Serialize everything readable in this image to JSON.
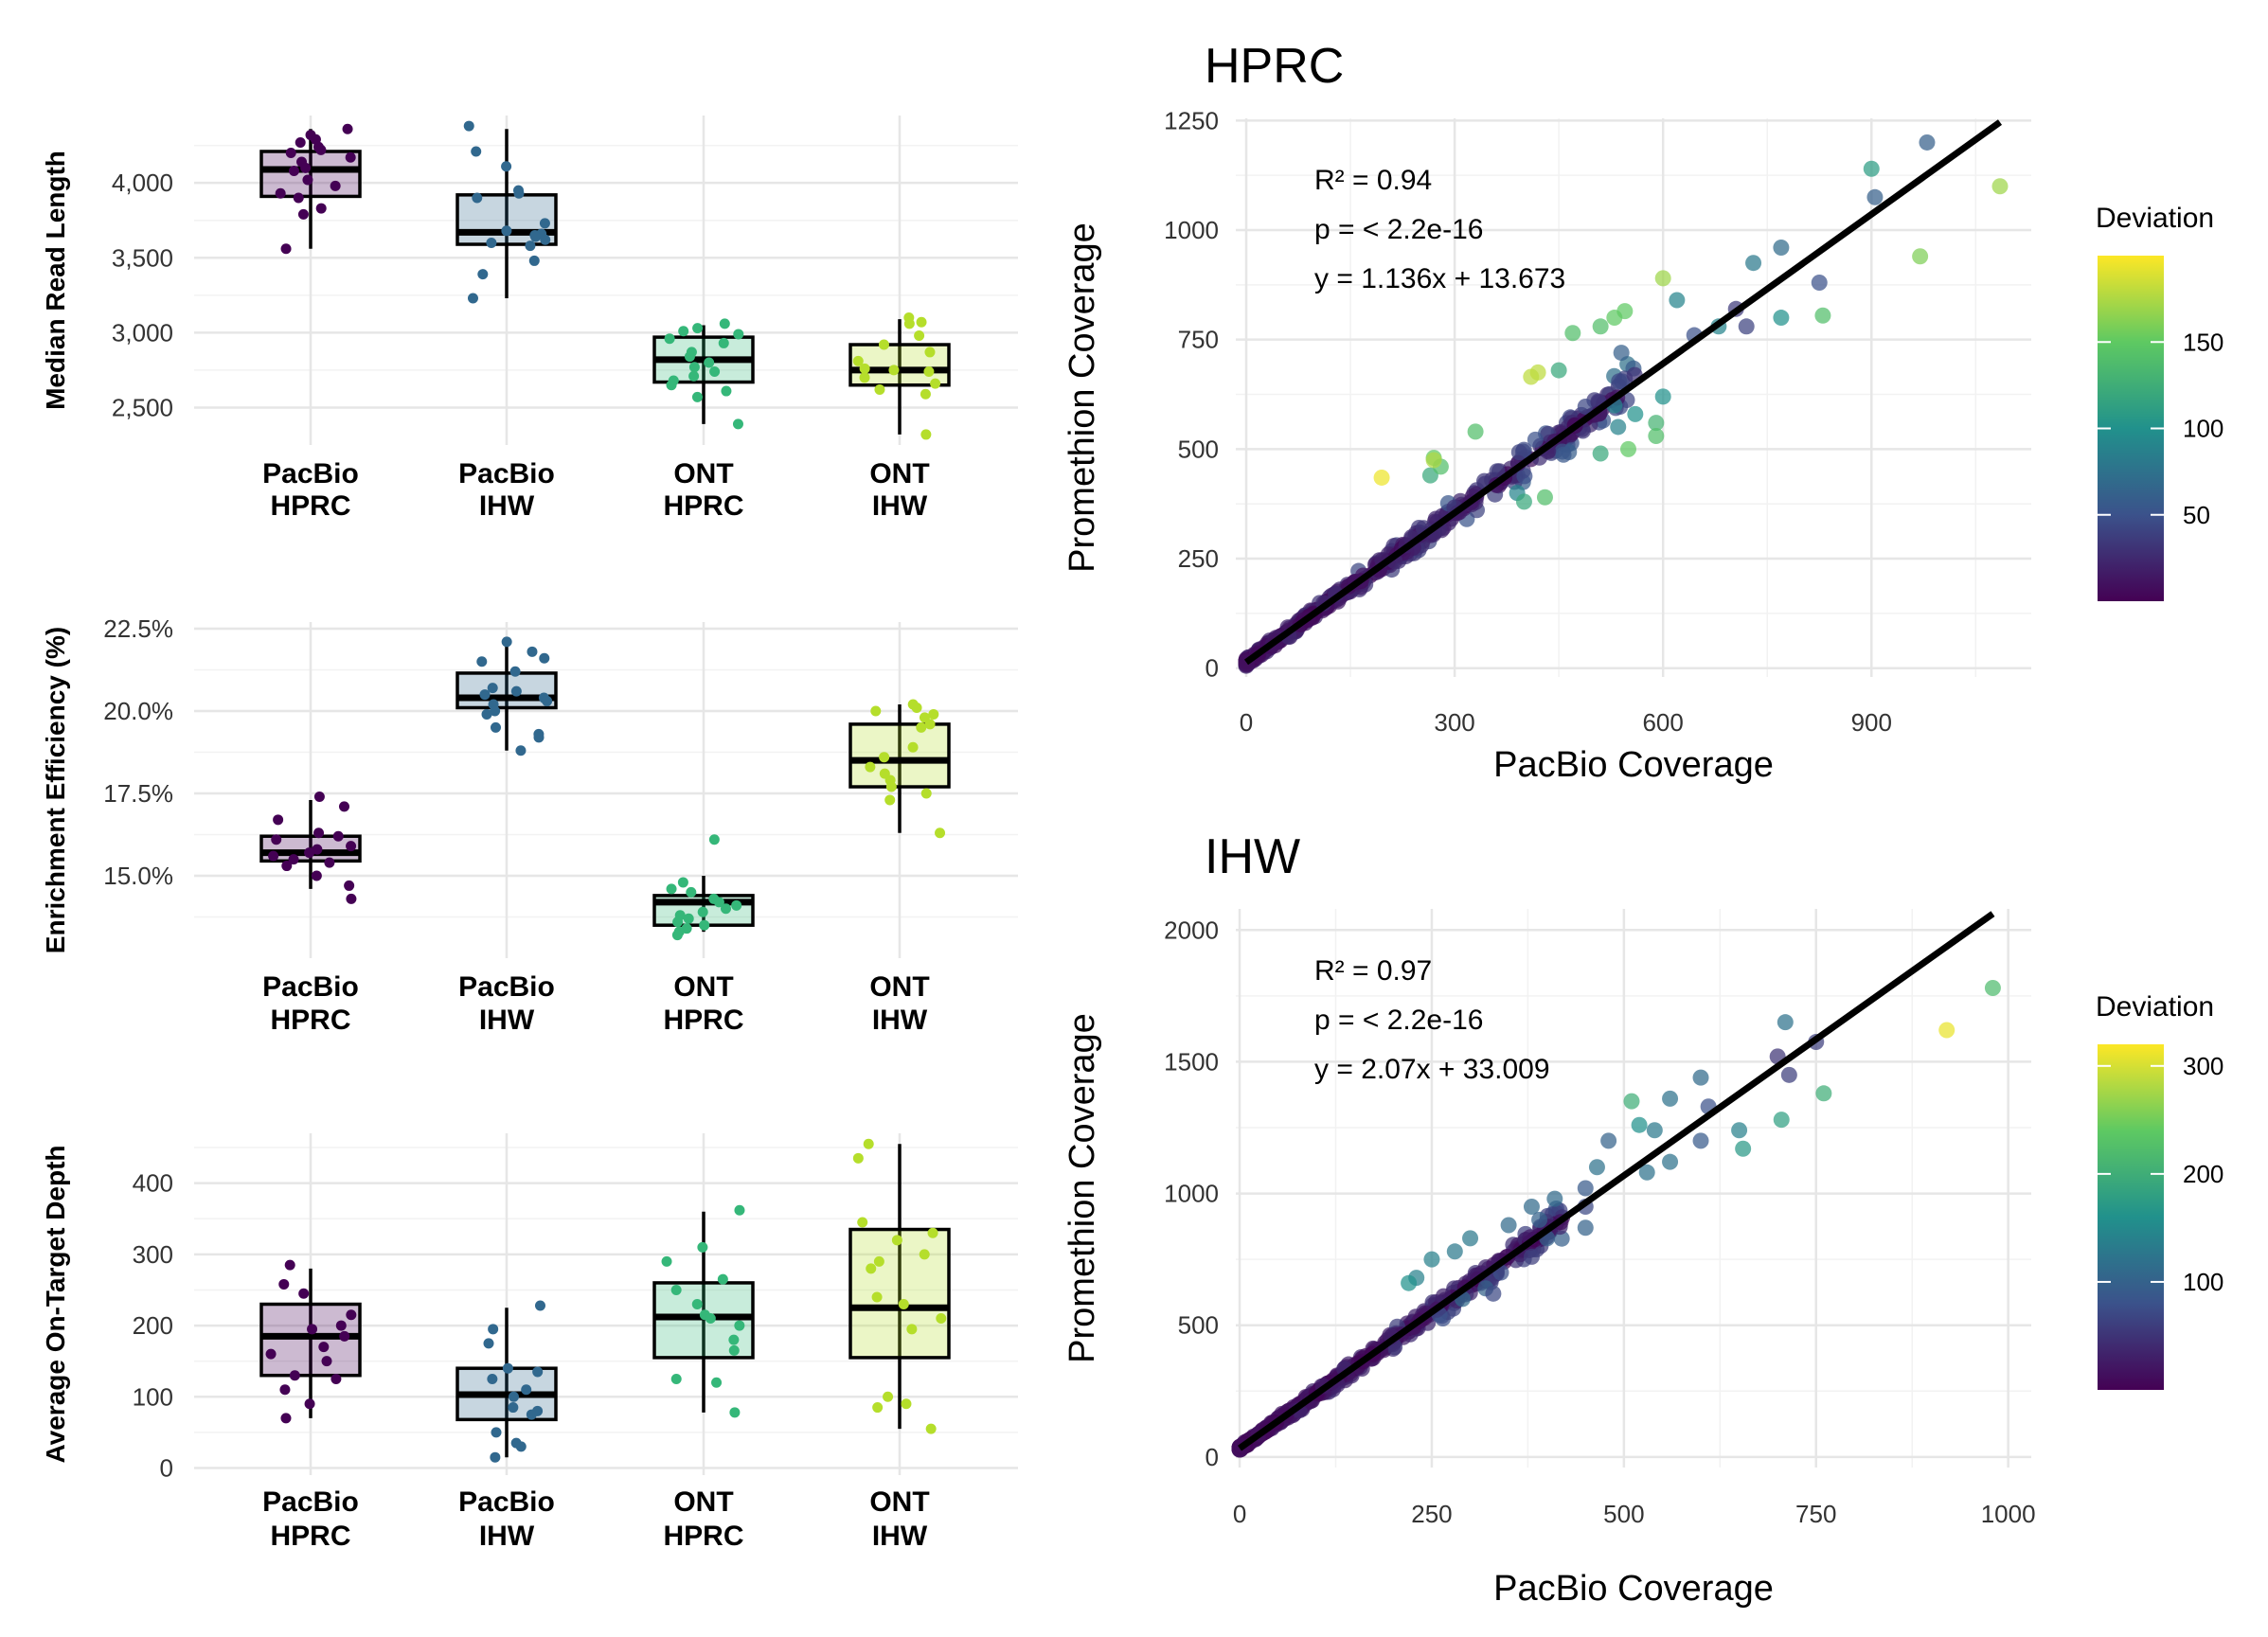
{
  "chart_data": [
    {
      "type": "box",
      "ylabel": "Median Read Length",
      "categories": [
        "PacBio\nHPRC",
        "PacBio\nIHW",
        "ONT\nHPRC",
        "ONT\nIHW"
      ],
      "yticks": [
        "2,500",
        "3,000",
        "3,500",
        "4,000"
      ],
      "ytick_values": [
        2500,
        3000,
        3500,
        4000
      ],
      "ylim": [
        2250,
        4450
      ],
      "colors": [
        "#440154",
        "#31688e",
        "#35b779",
        "#b5de2b"
      ],
      "boxes": [
        {
          "min": 3560,
          "q1": 3910,
          "median": 4090,
          "q3": 4210,
          "max": 4360
        },
        {
          "min": 3230,
          "q1": 3590,
          "median": 3670,
          "q3": 3920,
          "max": 4360
        },
        {
          "min": 2390,
          "q1": 2670,
          "median": 2820,
          "q3": 2970,
          "max": 3050
        },
        {
          "min": 2320,
          "q1": 2650,
          "median": 2750,
          "q3": 2920,
          "max": 3090
        }
      ],
      "points": [
        [
          4360,
          4320,
          4290,
          4270,
          4240,
          4220,
          4200,
          4170,
          4140,
          4100,
          4080,
          4020,
          3980,
          3930,
          3900,
          3830,
          3790,
          3560
        ],
        [
          4380,
          4210,
          4110,
          3950,
          3930,
          3900,
          3730,
          3680,
          3660,
          3650,
          3640,
          3620,
          3600,
          3580,
          3480,
          3390,
          3230
        ],
        [
          3060,
          3030,
          3010,
          2990,
          2960,
          2930,
          2870,
          2840,
          2800,
          2770,
          2740,
          2710,
          2680,
          2650,
          2610,
          2570,
          2390
        ],
        [
          3100,
          3070,
          3060,
          2980,
          2920,
          2870,
          2810,
          2760,
          2750,
          2740,
          2700,
          2660,
          2620,
          2590,
          2320
        ]
      ]
    },
    {
      "type": "box",
      "ylabel": "Enrichment Efficiency (%)",
      "categories": [
        "PacBio\nHPRC",
        "PacBio\nIHW",
        "ONT\nHPRC",
        "ONT\nIHW"
      ],
      "yticks": [
        "15.0%",
        "17.5%",
        "20.0%",
        "22.5%"
      ],
      "ytick_values": [
        15.0,
        17.5,
        20.0,
        22.5
      ],
      "ylim": [
        12.5,
        22.7
      ],
      "colors": [
        "#440154",
        "#31688e",
        "#35b779",
        "#b5de2b"
      ],
      "boxes": [
        {
          "min": 14.6,
          "q1": 15.45,
          "median": 15.7,
          "q3": 16.2,
          "max": 17.3
        },
        {
          "min": 18.8,
          "q1": 20.1,
          "median": 20.4,
          "q3": 21.15,
          "max": 22.0
        },
        {
          "min": 13.3,
          "q1": 13.5,
          "median": 14.2,
          "q3": 14.4,
          "max": 15.0
        },
        {
          "min": 16.3,
          "q1": 17.7,
          "median": 18.5,
          "q3": 19.6,
          "max": 20.2
        }
      ],
      "points": [
        [
          17.4,
          17.1,
          16.7,
          16.3,
          16.2,
          16.1,
          15.9,
          15.8,
          15.7,
          15.6,
          15.5,
          15.4,
          15.3,
          15.0,
          14.7,
          14.3
        ],
        [
          22.1,
          21.8,
          21.6,
          21.5,
          21.2,
          20.7,
          20.6,
          20.5,
          20.4,
          20.3,
          20.2,
          20.0,
          19.9,
          19.5,
          19.3,
          19.2,
          18.8
        ],
        [
          16.1,
          14.8,
          14.6,
          14.5,
          14.3,
          14.2,
          14.1,
          14.0,
          13.9,
          13.8,
          13.7,
          13.6,
          13.5,
          13.4,
          13.3,
          13.2
        ],
        [
          20.2,
          20.1,
          20.0,
          19.9,
          19.8,
          19.6,
          19.5,
          18.9,
          18.6,
          18.3,
          18.1,
          17.9,
          17.7,
          17.5,
          17.3,
          16.3
        ]
      ]
    },
    {
      "type": "box",
      "ylabel": "Average On-Target Depth",
      "categories": [
        "PacBio\nHPRC",
        "PacBio\nIHW",
        "ONT\nHPRC",
        "ONT\nIHW"
      ],
      "yticks": [
        "0",
        "100",
        "200",
        "300",
        "400"
      ],
      "ytick_values": [
        0,
        100,
        200,
        300,
        400
      ],
      "ylim": [
        -10,
        470
      ],
      "colors": [
        "#440154",
        "#31688e",
        "#35b779",
        "#b5de2b"
      ],
      "boxes": [
        {
          "min": 70,
          "q1": 130,
          "median": 185,
          "q3": 230,
          "max": 280
        },
        {
          "min": 15,
          "q1": 68,
          "median": 103,
          "q3": 140,
          "max": 225
        },
        {
          "min": 78,
          "q1": 155,
          "median": 212,
          "q3": 260,
          "max": 360
        },
        {
          "min": 55,
          "q1": 155,
          "median": 225,
          "q3": 335,
          "max": 455
        }
      ],
      "points": [
        [
          285,
          258,
          245,
          215,
          200,
          195,
          185,
          170,
          160,
          150,
          130,
          125,
          110,
          90,
          70
        ],
        [
          228,
          195,
          175,
          140,
          135,
          125,
          110,
          100,
          85,
          80,
          75,
          50,
          35,
          30,
          15
        ],
        [
          362,
          310,
          290,
          265,
          250,
          230,
          215,
          210,
          200,
          180,
          165,
          125,
          120,
          78
        ],
        [
          455,
          435,
          345,
          330,
          320,
          300,
          290,
          280,
          240,
          230,
          210,
          195,
          100,
          90,
          85,
          55
        ]
      ]
    },
    {
      "type": "scatter",
      "title": "HPRC",
      "xlabel": "PacBio Coverage",
      "ylabel": "Promethion Coverage",
      "xticks": [
        0,
        300,
        600,
        900
      ],
      "yticks": [
        0,
        250,
        500,
        750,
        1000,
        1250
      ],
      "xlim": [
        -15,
        1130
      ],
      "ylim": [
        -20,
        1255
      ],
      "annotations": [
        "R² = 0.94",
        "p = < 2.2e-16",
        "y = 1.136x + 13.673"
      ],
      "fit": {
        "slope": 1.136,
        "intercept": 13.673,
        "x_range": [
          0,
          1085
        ]
      },
      "legend": {
        "title": "Deviation",
        "ticks": [
          "50",
          "100",
          "150"
        ],
        "tick_values": [
          50,
          100,
          150
        ],
        "range": [
          0,
          200
        ]
      },
      "n_generated": 520,
      "points": [
        [
          980,
          1200,
          60
        ],
        [
          900,
          1140,
          110
        ],
        [
          1085,
          1100,
          170
        ],
        [
          970,
          940,
          160
        ],
        [
          905,
          1075,
          60
        ],
        [
          825,
          880,
          50
        ],
        [
          770,
          960,
          70
        ],
        [
          730,
          925,
          80
        ],
        [
          830,
          805,
          140
        ],
        [
          770,
          800,
          100
        ],
        [
          705,
          820,
          35
        ],
        [
          720,
          780,
          40
        ],
        [
          680,
          780,
          90
        ],
        [
          645,
          760,
          50
        ],
        [
          620,
          840,
          90
        ],
        [
          600,
          890,
          170
        ],
        [
          545,
          815,
          150
        ],
        [
          530,
          800,
          150
        ],
        [
          510,
          780,
          140
        ],
        [
          470,
          765,
          140
        ],
        [
          540,
          720,
          60
        ],
        [
          600,
          620,
          100
        ],
        [
          590,
          560,
          130
        ],
        [
          590,
          530,
          140
        ],
        [
          560,
          580,
          100
        ],
        [
          530,
          600,
          90
        ],
        [
          450,
          680,
          120
        ],
        [
          410,
          665,
          180
        ],
        [
          420,
          675,
          180
        ],
        [
          330,
          540,
          140
        ],
        [
          270,
          480,
          150
        ],
        [
          265,
          440,
          120
        ],
        [
          280,
          460,
          140
        ],
        [
          195,
          435,
          195
        ],
        [
          270,
          475,
          175
        ],
        [
          390,
          400,
          90
        ],
        [
          400,
          380,
          120
        ],
        [
          430,
          390,
          140
        ],
        [
          510,
          490,
          120
        ],
        [
          550,
          500,
          150
        ]
      ]
    },
    {
      "type": "scatter",
      "title": "IHW",
      "xlabel": "PacBio Coverage",
      "ylabel": "Promethion Coverage",
      "xticks": [
        0,
        250,
        500,
        750,
        1000
      ],
      "yticks": [
        0,
        500,
        1000,
        1500,
        2000
      ],
      "xlim": [
        -5,
        1030
      ],
      "ylim": [
        -40,
        2080
      ],
      "annotations": [
        "R² = 0.97",
        "p = < 2.2e-16",
        "y = 2.07x + 33.009"
      ],
      "fit": {
        "slope": 2.07,
        "intercept": 33.009,
        "x_range": [
          0,
          980
        ]
      },
      "legend": {
        "title": "Deviation",
        "ticks": [
          "100",
          "200",
          "300"
        ],
        "tick_values": [
          100,
          200,
          300
        ],
        "range": [
          0,
          320
        ]
      },
      "n_generated": 520,
      "points": [
        [
          920,
          1620,
          310
        ],
        [
          980,
          1780,
          220
        ],
        [
          710,
          1650,
          120
        ],
        [
          750,
          1575,
          60
        ],
        [
          700,
          1520,
          50
        ],
        [
          715,
          1450,
          60
        ],
        [
          600,
          1440,
          110
        ],
        [
          705,
          1280,
          180
        ],
        [
          760,
          1380,
          200
        ],
        [
          650,
          1240,
          140
        ],
        [
          655,
          1170,
          170
        ],
        [
          560,
          1360,
          120
        ],
        [
          610,
          1330,
          80
        ],
        [
          510,
          1350,
          200
        ],
        [
          520,
          1260,
          160
        ],
        [
          540,
          1240,
          130
        ],
        [
          600,
          1200,
          90
        ],
        [
          530,
          1080,
          120
        ],
        [
          560,
          1120,
          120
        ],
        [
          480,
          1200,
          100
        ],
        [
          465,
          1100,
          120
        ],
        [
          450,
          1020,
          90
        ],
        [
          410,
          980,
          110
        ],
        [
          380,
          950,
          110
        ],
        [
          390,
          900,
          100
        ],
        [
          350,
          880,
          110
        ],
        [
          300,
          830,
          130
        ],
        [
          280,
          780,
          130
        ],
        [
          250,
          750,
          140
        ],
        [
          230,
          680,
          140
        ],
        [
          220,
          660,
          160
        ],
        [
          340,
          700,
          80
        ],
        [
          380,
          760,
          60
        ],
        [
          450,
          950,
          70
        ],
        [
          320,
          640,
          100
        ],
        [
          290,
          600,
          110
        ],
        [
          260,
          540,
          80
        ],
        [
          450,
          870,
          100
        ],
        [
          400,
          830,
          100
        ],
        [
          330,
          620,
          70
        ]
      ]
    }
  ]
}
